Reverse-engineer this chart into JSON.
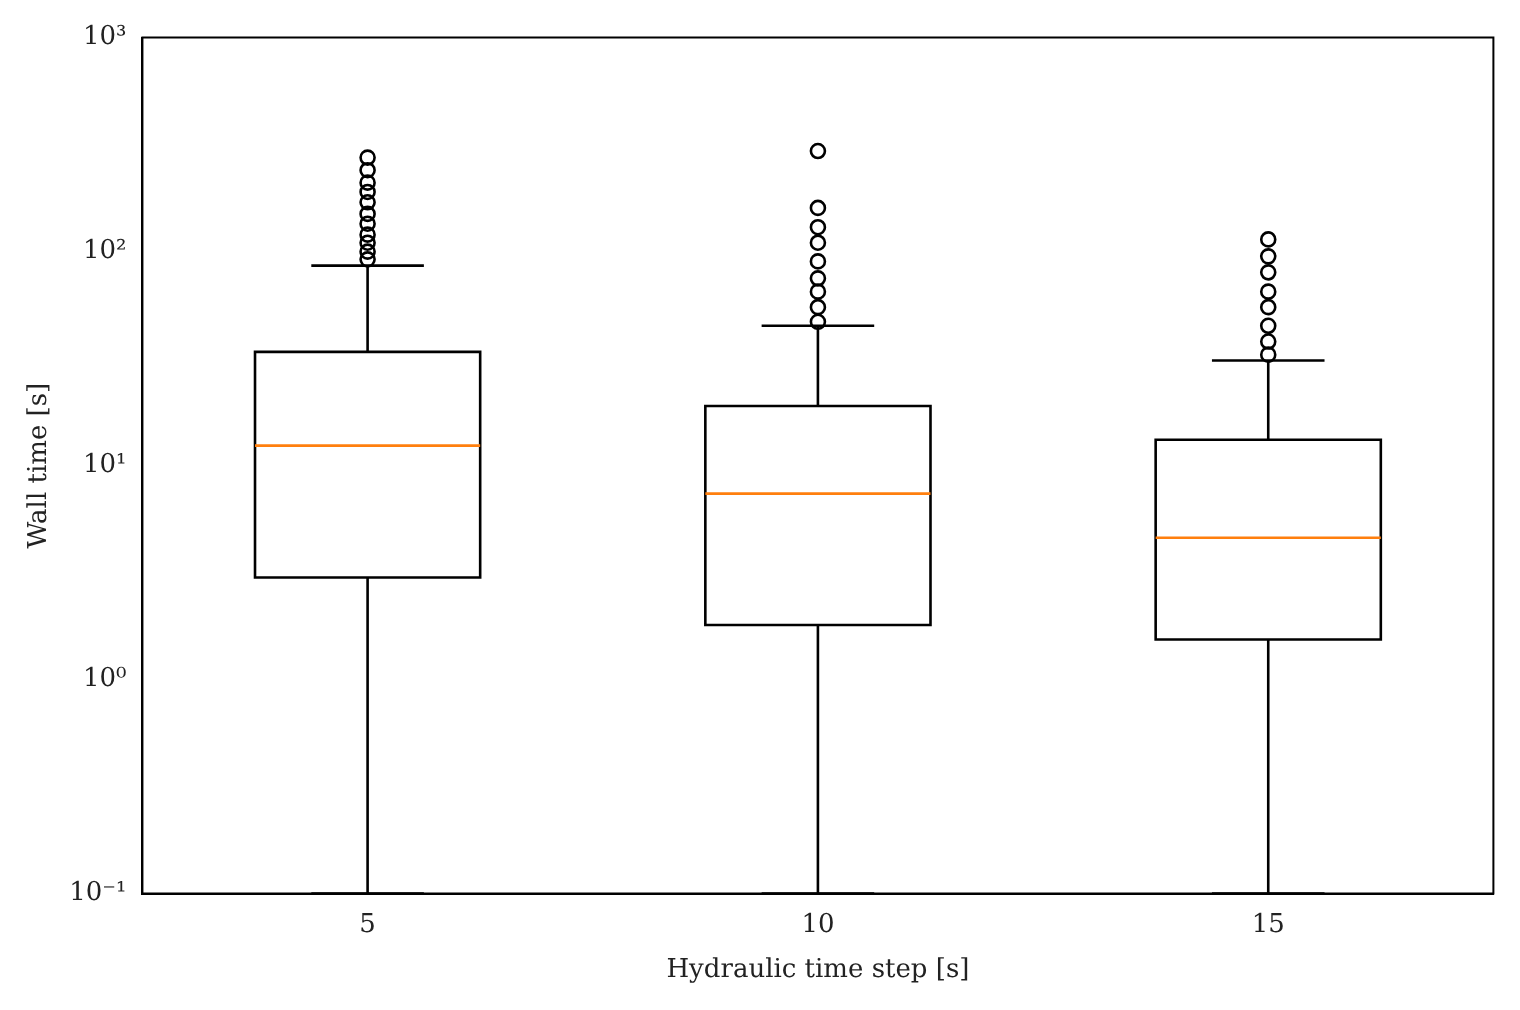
{
  "chart_data": {
    "type": "box",
    "xlabel": "Hydraulic time step [s]",
    "ylabel": "Wall time [s]",
    "categories": [
      "5",
      "10",
      "15"
    ],
    "log": "y",
    "grid": false,
    "ylim": [
      0.1,
      1000
    ],
    "yticks": [
      {
        "value": 0.1,
        "label": "10⁻¹"
      },
      {
        "value": 1,
        "label": "10⁰"
      },
      {
        "value": 10,
        "label": "10¹"
      },
      {
        "value": 100,
        "label": "10²"
      },
      {
        "value": 1000,
        "label": "10³"
      }
    ],
    "boxes": [
      {
        "low": 0.1,
        "q1": 3.0,
        "median": 12.4,
        "q3": 34,
        "high": 86,
        "outliers": [
          92,
          100,
          110,
          120,
          135,
          150,
          170,
          190,
          210,
          240,
          275
        ]
      },
      {
        "low": 0.1,
        "q1": 1.8,
        "median": 7.4,
        "q3": 19,
        "high": 45,
        "outliers": [
          47,
          55,
          65,
          75,
          90,
          110,
          130,
          160,
          295
        ]
      },
      {
        "low": 0.1,
        "q1": 1.54,
        "median": 4.6,
        "q3": 13.2,
        "high": 31,
        "outliers": [
          33,
          38,
          45,
          55,
          65,
          80,
          95,
          114
        ]
      }
    ]
  }
}
